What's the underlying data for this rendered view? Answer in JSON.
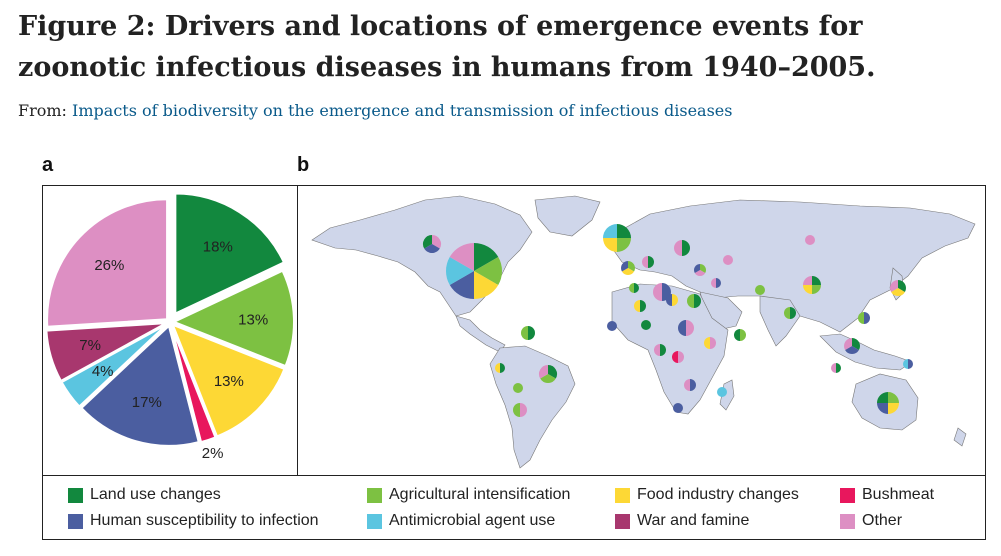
{
  "figure": {
    "title": "Figure 2: Drivers and locations of emergence events for zoonotic infectious diseases in humans from 1940–2005.",
    "from_prefix": "From:",
    "from_link": "Impacts of biodiversity on the emergence and transmission of infectious diseases"
  },
  "panels": {
    "a_label": "a",
    "b_label": "b"
  },
  "colors": {
    "Land use changes": "#12883e",
    "Agricultural intensification": "#7dc142",
    "Food industry changes": "#fdd835",
    "Bushmeat": "#e8175d",
    "Human susceptibility to infection": "#4b5ea0",
    "Antimicrobial agent use": "#5bc5e0",
    "War and famine": "#a8376e",
    "Other": "#dd8fc3"
  },
  "chart_data": {
    "type": "pie",
    "slices": [
      {
        "name": "Land use changes",
        "value": 18,
        "label": "18%"
      },
      {
        "name": "Agricultural intensification",
        "value": 13,
        "label": "13%"
      },
      {
        "name": "Food industry changes",
        "value": 13,
        "label": "13%"
      },
      {
        "name": "Bushmeat",
        "value": 2,
        "label": "2%"
      },
      {
        "name": "Human susceptibility to infection",
        "value": 17,
        "label": "17%"
      },
      {
        "name": "Antimicrobial agent use",
        "value": 4,
        "label": "4%"
      },
      {
        "name": "War and famine",
        "value": 7,
        "label": "7%"
      },
      {
        "name": "Other",
        "value": 26,
        "label": "26%"
      }
    ],
    "legend": [
      "Land use changes",
      "Agricultural intensification",
      "Food industry changes",
      "Bushmeat",
      "Human susceptibility to infection",
      "Antimicrobial agent use",
      "War and famine",
      "Other"
    ],
    "legend_placement": "bottom"
  },
  "map": {
    "description_type": "world map with pie-chart markers of emergence events",
    "land_color": "#cfd6ea",
    "ocean_color": "#ffffff"
  }
}
